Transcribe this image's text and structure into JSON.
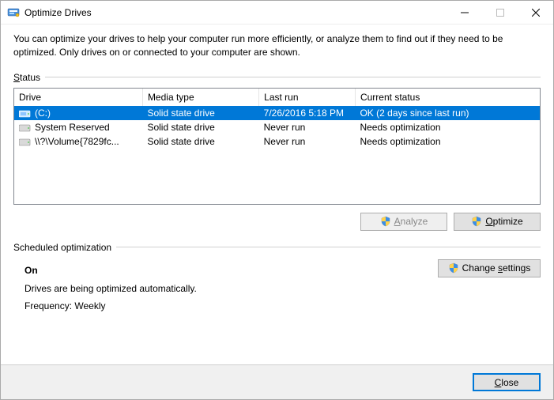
{
  "window": {
    "title": "Optimize Drives"
  },
  "intro": "You can optimize your drives to help your computer run more efficiently, or analyze them to find out if they need to be optimized. Only drives on or connected to your computer are shown.",
  "status": {
    "section_label": "Status",
    "columns": {
      "drive": "Drive",
      "media": "Media type",
      "last_run": "Last run",
      "current": "Current status"
    },
    "col_widths": {
      "drive": 160,
      "media": 145,
      "last_run": 120,
      "current": 230
    },
    "rows": [
      {
        "drive": "(C:)",
        "media": "Solid state drive",
        "last_run": "7/26/2016 5:18 PM",
        "current": "OK (2 days since last run)",
        "selected": true,
        "icon": "primary"
      },
      {
        "drive": "System Reserved",
        "media": "Solid state drive",
        "last_run": "Never run",
        "current": "Needs optimization",
        "selected": false,
        "icon": "hdd"
      },
      {
        "drive": "\\\\?\\Volume{7829fc...",
        "media": "Solid state drive",
        "last_run": "Never run",
        "current": "Needs optimization",
        "selected": false,
        "icon": "hdd"
      }
    ]
  },
  "buttons": {
    "analyze": "Analyze",
    "optimize": "Optimize",
    "change_settings": "Change settings",
    "close": "Close"
  },
  "scheduled": {
    "section_label": "Scheduled optimization",
    "state": "On",
    "desc": "Drives are being optimized automatically.",
    "freq": "Frequency: Weekly"
  },
  "colors": {
    "selection": "#0078d7",
    "border": "#828790",
    "footer_bg": "#f0f0f0",
    "rule": "#d0d0d0"
  }
}
